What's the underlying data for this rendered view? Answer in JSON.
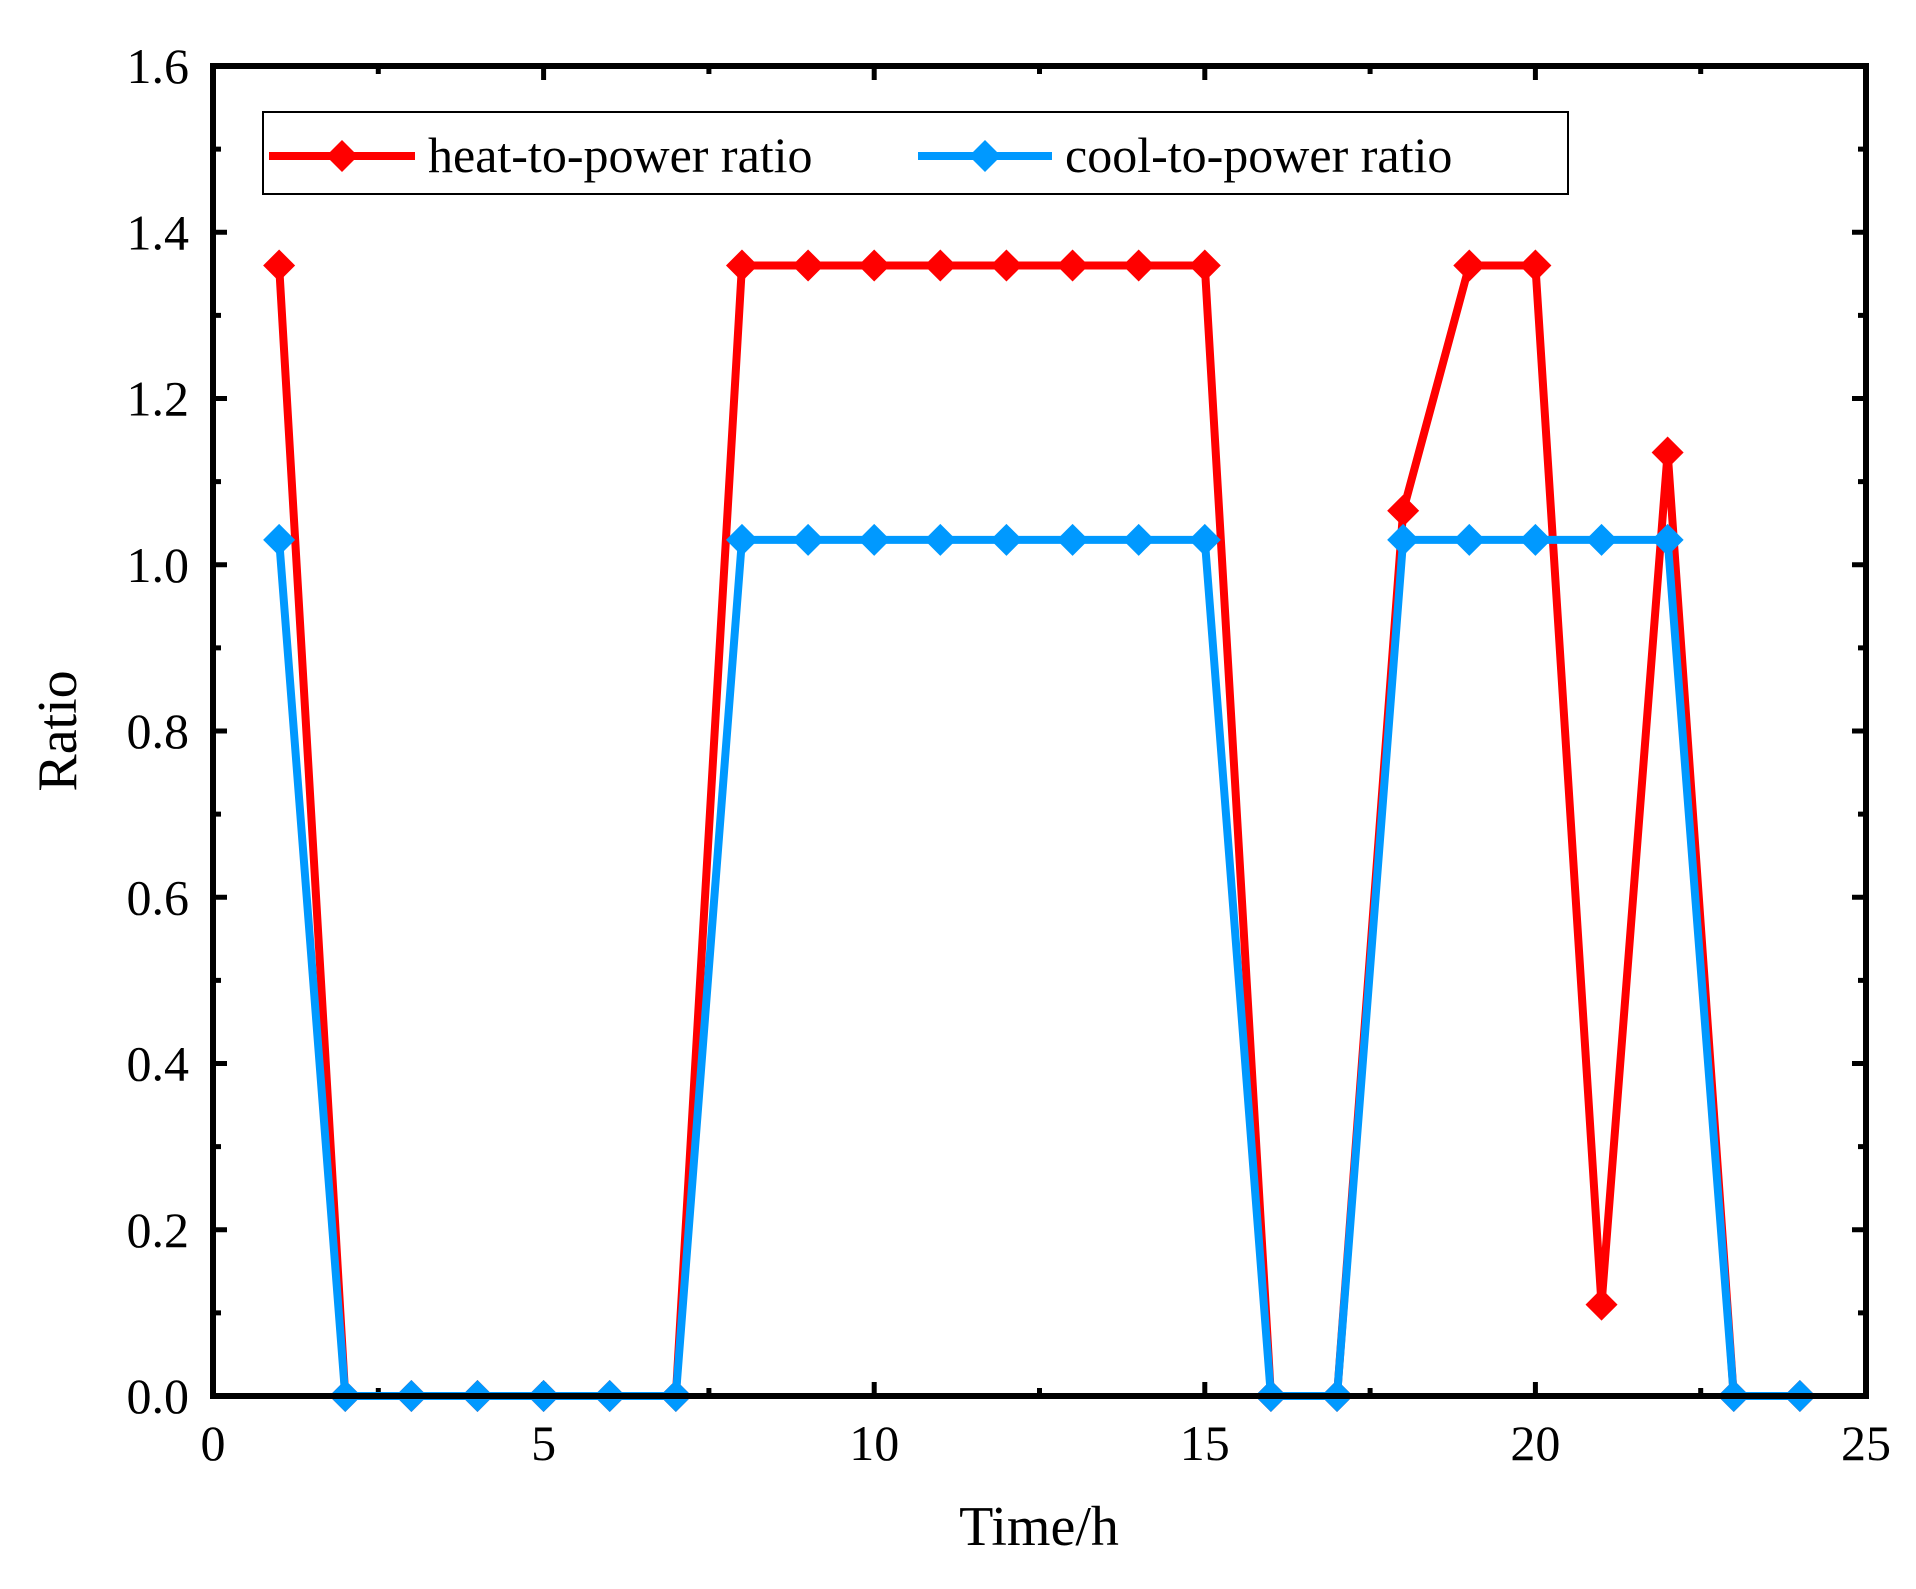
{
  "chart_data": {
    "type": "line",
    "title": "",
    "xlabel": "Time/h",
    "ylabel": "Ratio",
    "xlim": [
      0,
      25
    ],
    "ylim": [
      0.0,
      1.6
    ],
    "xticks": [
      0,
      5,
      10,
      15,
      20,
      25
    ],
    "xtick_labels": [
      "0",
      "5",
      "10",
      "15",
      "20",
      "25"
    ],
    "yticks": [
      0.0,
      0.2,
      0.4,
      0.6,
      0.8,
      1.0,
      1.2,
      1.4,
      1.6
    ],
    "ytick_labels": [
      "0.0",
      "0.2",
      "0.4",
      "0.6",
      "0.8",
      "1.0",
      "1.2",
      "1.4",
      "1.6"
    ],
    "grid": false,
    "legend_position": "top",
    "x": [
      1,
      2,
      3,
      4,
      5,
      6,
      7,
      8,
      9,
      10,
      11,
      12,
      13,
      14,
      15,
      16,
      17,
      18,
      19,
      20,
      21,
      22,
      23,
      24
    ],
    "series": [
      {
        "name": "heat-to-power ratio",
        "color": "#ff0000",
        "marker": "diamond",
        "values": [
          1.36,
          0.0,
          0.0,
          0.0,
          0.0,
          0.0,
          0.0,
          1.36,
          1.36,
          1.36,
          1.36,
          1.36,
          1.36,
          1.36,
          1.36,
          0.0,
          0.0,
          1.065,
          1.36,
          1.36,
          0.11,
          1.135,
          0.0,
          0.0
        ]
      },
      {
        "name": "cool-to-power ratio",
        "color": "#0099ff",
        "marker": "diamond",
        "values": [
          1.03,
          0.0,
          0.0,
          0.0,
          0.0,
          0.0,
          0.0,
          1.03,
          1.03,
          1.03,
          1.03,
          1.03,
          1.03,
          1.03,
          1.03,
          0.0,
          0.0,
          1.03,
          1.03,
          1.03,
          1.03,
          1.03,
          0.0,
          0.0
        ]
      }
    ]
  }
}
